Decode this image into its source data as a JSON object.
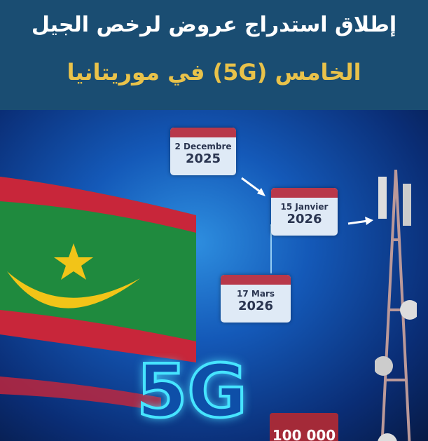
{
  "header": {
    "title_line1": "إطلاق  استدراج عروض لرخص الجيل",
    "title_line2": "الخامس (5G) في موريتانيا"
  },
  "timeline": [
    {
      "date": "2 Decembre",
      "year": "2025"
    },
    {
      "date": "15 Janvier",
      "year": "2026"
    },
    {
      "date": "17 Mars",
      "year": "2026"
    }
  ],
  "badge": {
    "value": "100 000"
  },
  "logo_5g": "5G",
  "colors": {
    "header_bg": "#1a4d72",
    "title_white": "#ffffff",
    "title_gold": "#e9c24a",
    "flag_green": "#1f8a3e",
    "flag_red": "#c8263a",
    "flag_yellow": "#f2c418"
  }
}
